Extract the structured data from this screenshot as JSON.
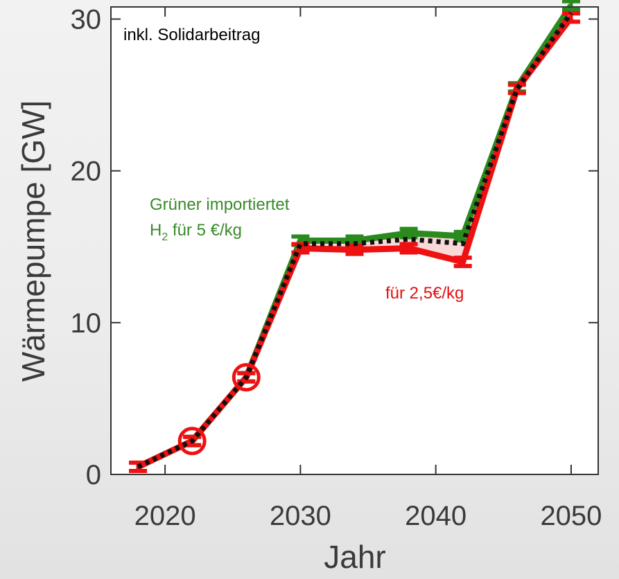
{
  "chart_data": {
    "type": "line",
    "x": [
      2018,
      2022,
      2026,
      2030,
      2034,
      2038,
      2042,
      2046,
      2050
    ],
    "series": [
      {
        "values": [
          0.5,
          2.2,
          6.4,
          15.4,
          15.4,
          15.9,
          15.7,
          25.5,
          30.9
        ]
      },
      {
        "values": [
          0.5,
          2.2,
          6.4,
          14.9,
          14.8,
          14.9,
          14.0,
          25.4,
          30.1
        ]
      },
      {
        "values": [
          0.5,
          2.2,
          6.4,
          15.2,
          15.2,
          15.5,
          15.2,
          25.4,
          30.4
        ]
      }
    ],
    "highlighted_points": [
      {
        "x": 2022,
        "y": 2.2
      },
      {
        "x": 2026,
        "y": 6.4
      }
    ],
    "ylabel": "Wärmepumpe  [GW]",
    "xlabel": "Jahr",
    "x_ticks": [
      "2020",
      "2030",
      "2040",
      "2050"
    ],
    "y_ticks": [
      "0",
      "10",
      "20",
      "30"
    ],
    "xlim": [
      2016,
      2052
    ],
    "ylim": [
      0,
      30.8
    ],
    "grid": false,
    "colors": {
      "green": "#2a8a1e",
      "red": "#ee1111",
      "dotted": "#111111",
      "annot_green": "#3a8a2a",
      "annot_red": "#e01010"
    },
    "annotations": {
      "top": "inkl. Solidarbeitrag",
      "green_line1": "Grüner importiertet",
      "green_line2_pre": "H",
      "green_line2_sub": "2",
      "green_line2_post": " für 5 €/kg",
      "red": "für 2,5€/kg"
    }
  }
}
